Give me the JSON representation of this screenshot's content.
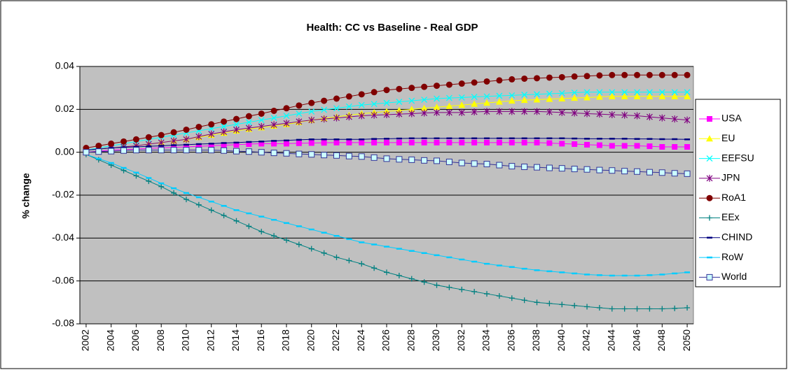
{
  "chart_data": {
    "type": "line",
    "title": "Health: CC vs Baseline  - Real GDP",
    "y_label": "% change",
    "x": [
      2002,
      2003,
      2004,
      2005,
      2006,
      2007,
      2008,
      2009,
      2010,
      2011,
      2012,
      2013,
      2014,
      2015,
      2016,
      2017,
      2018,
      2019,
      2020,
      2021,
      2022,
      2023,
      2024,
      2025,
      2026,
      2027,
      2028,
      2029,
      2030,
      2031,
      2032,
      2033,
      2034,
      2035,
      2036,
      2037,
      2038,
      2039,
      2040,
      2041,
      2042,
      2043,
      2044,
      2045,
      2046,
      2047,
      2048,
      2049,
      2050
    ],
    "xlim": [
      2001.5,
      2050.5
    ],
    "xticks": [
      2002,
      2004,
      2006,
      2008,
      2010,
      2012,
      2014,
      2016,
      2018,
      2020,
      2022,
      2024,
      2026,
      2028,
      2030,
      2032,
      2034,
      2036,
      2038,
      2040,
      2042,
      2044,
      2046,
      2048,
      2050
    ],
    "ylim": [
      -0.08,
      0.04
    ],
    "yticks": [
      0.04,
      0.02,
      {
        "value": 0,
        "label": "0.00"
      },
      -0.02,
      -0.04,
      -0.06,
      -0.08
    ],
    "grid": true,
    "legend": "right",
    "series": [
      {
        "name": "USA",
        "color": "#ff00ff",
        "marker": "square",
        "values": [
          0,
          0.0005,
          0.001,
          0.0013,
          0.0015,
          0.0018,
          0.002,
          0.0023,
          0.0025,
          0.0028,
          0.003,
          0.0033,
          0.0035,
          0.0038,
          0.004,
          0.004,
          0.004,
          0.0042,
          0.0043,
          0.0044,
          0.0045,
          0.0045,
          0.0045,
          0.0045,
          0.0045,
          0.0045,
          0.0045,
          0.0045,
          0.0045,
          0.0045,
          0.0045,
          0.0045,
          0.0045,
          0.0045,
          0.0045,
          0.0045,
          0.0045,
          0.0043,
          0.004,
          0.0038,
          0.0035,
          0.0033,
          0.003,
          0.003,
          0.003,
          0.0028,
          0.0025,
          0.0025,
          0.0025
        ]
      },
      {
        "name": "EU",
        "color": "#ffff00",
        "marker": "triangle",
        "values": [
          0.001,
          0.0015,
          0.002,
          0.0025,
          0.003,
          0.0038,
          0.0045,
          0.0053,
          0.006,
          0.007,
          0.008,
          0.009,
          0.01,
          0.0108,
          0.0115,
          0.0123,
          0.013,
          0.014,
          0.015,
          0.0158,
          0.0165,
          0.0173,
          0.018,
          0.0185,
          0.019,
          0.0195,
          0.02,
          0.0205,
          0.021,
          0.0215,
          0.022,
          0.0225,
          0.023,
          0.0235,
          0.024,
          0.0243,
          0.0245,
          0.0248,
          0.025,
          0.0253,
          0.0255,
          0.0258,
          0.026,
          0.026,
          0.026,
          0.026,
          0.026,
          0.026,
          0.026
        ]
      },
      {
        "name": "EEFSU",
        "color": "#00ffff",
        "marker": "x",
        "values": [
          0.001,
          0.002,
          0.003,
          0.004,
          0.005,
          0.006,
          0.007,
          0.008,
          0.009,
          0.01,
          0.011,
          0.012,
          0.013,
          0.014,
          0.015,
          0.016,
          0.017,
          0.018,
          0.019,
          0.0198,
          0.0205,
          0.0213,
          0.022,
          0.0225,
          0.023,
          0.0235,
          0.024,
          0.0245,
          0.025,
          0.0253,
          0.0255,
          0.0258,
          0.026,
          0.0263,
          0.0265,
          0.0268,
          0.027,
          0.0273,
          0.0275,
          0.0278,
          0.028,
          0.028,
          0.028,
          0.028,
          0.028,
          0.028,
          0.028,
          0.028,
          0.028
        ]
      },
      {
        "name": "JPN",
        "color": "#800080",
        "marker": "star",
        "values": [
          0.001,
          0.0015,
          0.002,
          0.0025,
          0.003,
          0.0038,
          0.0045,
          0.0053,
          0.006,
          0.0073,
          0.0085,
          0.0095,
          0.0105,
          0.0113,
          0.012,
          0.0128,
          0.0135,
          0.0143,
          0.015,
          0.0155,
          0.016,
          0.0165,
          0.017,
          0.0173,
          0.0175,
          0.0178,
          0.018,
          0.0183,
          0.0185,
          0.0185,
          0.0185,
          0.0188,
          0.019,
          0.019,
          0.019,
          0.019,
          0.019,
          0.0188,
          0.0185,
          0.0183,
          0.018,
          0.0178,
          0.0175,
          0.0173,
          0.017,
          0.0165,
          0.016,
          0.0155,
          0.015
        ]
      },
      {
        "name": "RoA1",
        "color": "#800000",
        "marker": "circle",
        "values": [
          0.002,
          0.003,
          0.004,
          0.005,
          0.006,
          0.007,
          0.008,
          0.0093,
          0.0105,
          0.0118,
          0.013,
          0.0143,
          0.0155,
          0.0168,
          0.018,
          0.0193,
          0.0205,
          0.0218,
          0.023,
          0.024,
          0.025,
          0.026,
          0.027,
          0.028,
          0.029,
          0.0295,
          0.03,
          0.0305,
          0.031,
          0.0315,
          0.032,
          0.0325,
          0.033,
          0.0335,
          0.034,
          0.0343,
          0.0345,
          0.0348,
          0.035,
          0.0353,
          0.0355,
          0.0358,
          0.036,
          0.036,
          0.036,
          0.036,
          0.036,
          0.036,
          0.036
        ]
      },
      {
        "name": "EEx",
        "color": "#008080",
        "marker": "plus",
        "values": [
          -0.001,
          -0.0035,
          -0.006,
          -0.0085,
          -0.011,
          -0.0135,
          -0.016,
          -0.019,
          -0.022,
          -0.0245,
          -0.027,
          -0.0295,
          -0.032,
          -0.0345,
          -0.037,
          -0.039,
          -0.041,
          -0.043,
          -0.045,
          -0.047,
          -0.049,
          -0.0505,
          -0.052,
          -0.054,
          -0.056,
          -0.0575,
          -0.059,
          -0.0605,
          -0.062,
          -0.063,
          -0.064,
          -0.065,
          -0.066,
          -0.067,
          -0.068,
          -0.069,
          -0.07,
          -0.0705,
          -0.071,
          -0.0715,
          -0.072,
          -0.0725,
          -0.073,
          -0.073,
          -0.073,
          -0.073,
          -0.073,
          -0.0728,
          -0.0725
        ]
      },
      {
        "name": "CHIND",
        "color": "#000080",
        "marker": "dash",
        "values": [
          0.001,
          0.0015,
          0.002,
          0.0023,
          0.0025,
          0.0028,
          0.003,
          0.0033,
          0.0035,
          0.0038,
          0.004,
          0.0043,
          0.0045,
          0.0048,
          0.005,
          0.0053,
          0.0055,
          0.0058,
          0.006,
          0.006,
          0.006,
          0.006,
          0.006,
          0.0062,
          0.0063,
          0.0064,
          0.0065,
          0.0065,
          0.0065,
          0.0065,
          0.0065,
          0.0065,
          0.0065,
          0.0065,
          0.0065,
          0.0065,
          0.0065,
          0.0065,
          0.0065,
          0.0064,
          0.0063,
          0.0063,
          0.0063,
          0.0063,
          0.0062,
          0.0062,
          0.0061,
          0.0061,
          0.006
        ]
      },
      {
        "name": "RoW",
        "color": "#00ccff",
        "marker": "dash",
        "values": [
          -0.001,
          -0.003,
          -0.005,
          -0.0073,
          -0.0095,
          -0.012,
          -0.0145,
          -0.0168,
          -0.019,
          -0.021,
          -0.023,
          -0.025,
          -0.027,
          -0.0285,
          -0.03,
          -0.0315,
          -0.033,
          -0.0345,
          -0.036,
          -0.0375,
          -0.039,
          -0.0405,
          -0.042,
          -0.043,
          -0.044,
          -0.045,
          -0.046,
          -0.047,
          -0.048,
          -0.049,
          -0.05,
          -0.051,
          -0.052,
          -0.0528,
          -0.0535,
          -0.0543,
          -0.055,
          -0.0555,
          -0.056,
          -0.0565,
          -0.057,
          -0.0573,
          -0.0575,
          -0.0575,
          -0.0575,
          -0.0573,
          -0.057,
          -0.0565,
          -0.056
        ]
      },
      {
        "name": "World",
        "color": "#333399",
        "marker": "hollow-square",
        "values": [
          0,
          0.0003,
          0.0005,
          0.0008,
          0.001,
          0.001,
          0.001,
          0.001,
          0.001,
          0.001,
          0.001,
          0.0008,
          0.0005,
          0.0003,
          0,
          -0.0003,
          -0.0005,
          -0.0008,
          -0.001,
          -0.0013,
          -0.0015,
          -0.0018,
          -0.002,
          -0.0025,
          -0.003,
          -0.0033,
          -0.0035,
          -0.0038,
          -0.004,
          -0.0045,
          -0.005,
          -0.0053,
          -0.0055,
          -0.006,
          -0.0065,
          -0.0068,
          -0.007,
          -0.0073,
          -0.0075,
          -0.0078,
          -0.008,
          -0.0083,
          -0.0085,
          -0.0088,
          -0.009,
          -0.0093,
          -0.0095,
          -0.0098,
          -0.01
        ]
      }
    ]
  }
}
